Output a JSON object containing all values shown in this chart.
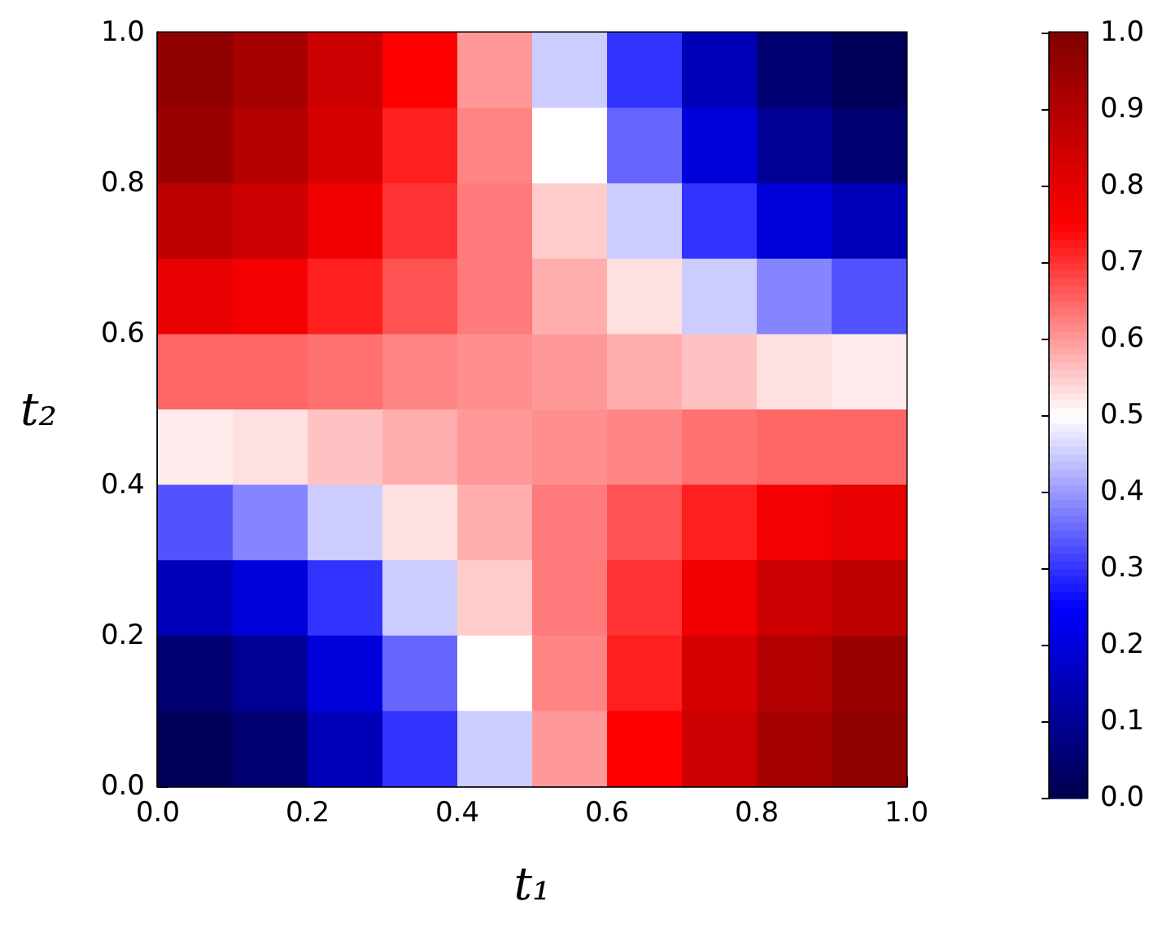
{
  "chart_data": {
    "type": "heatmap",
    "xlabel": "t₁",
    "ylabel": "t₂",
    "x": [
      0.05,
      0.15,
      0.25,
      0.35,
      0.45,
      0.55,
      0.65,
      0.75,
      0.85,
      0.95
    ],
    "xlim": [
      0,
      1
    ],
    "ylim": [
      0,
      1
    ],
    "xticks": [
      {
        "value": 0,
        "label": "0.0"
      },
      {
        "value": 0.2,
        "label": "0.2"
      },
      {
        "value": 0.4,
        "label": "0.4"
      },
      {
        "value": 0.6,
        "label": "0.6"
      },
      {
        "value": 0.8,
        "label": "0.8"
      },
      {
        "value": 1,
        "label": "1.0"
      }
    ],
    "yticks": [
      {
        "value": 0,
        "label": "0.0"
      },
      {
        "value": 0.2,
        "label": "0.2"
      },
      {
        "value": 0.4,
        "label": "0.4"
      },
      {
        "value": 0.6,
        "label": "0.6"
      },
      {
        "value": 0.8,
        "label": "0.8"
      },
      {
        "value": 1,
        "label": "1.0"
      }
    ],
    "clim": [
      0,
      1
    ],
    "cticks": [
      {
        "value": 0,
        "label": "0.0"
      },
      0.1,
      0.2,
      0.3,
      0.4,
      0.5,
      0.6,
      0.7,
      0.8,
      0.9,
      {
        "value": 1,
        "label": "1.0"
      }
    ],
    "cells": [
      [
        0.97,
        0.93,
        0.85,
        0.75,
        0.6,
        0.45,
        0.3,
        0.15,
        0.05,
        0.02
      ],
      [
        0.95,
        0.9,
        0.83,
        0.72,
        0.62,
        0.5,
        0.35,
        0.2,
        0.1,
        0.05
      ],
      [
        0.88,
        0.85,
        0.78,
        0.7,
        0.63,
        0.55,
        0.45,
        0.3,
        0.2,
        0.15
      ],
      [
        0.8,
        0.77,
        0.72,
        0.67,
        0.63,
        0.58,
        0.53,
        0.45,
        0.38,
        0.33
      ],
      [
        0.65,
        0.65,
        0.64,
        0.62,
        0.61,
        0.6,
        0.58,
        0.56,
        0.53,
        0.52
      ],
      [
        0.52,
        0.53,
        0.56,
        0.58,
        0.6,
        0.61,
        0.62,
        0.64,
        0.65,
        0.65
      ],
      [
        0.33,
        0.38,
        0.45,
        0.53,
        0.58,
        0.63,
        0.67,
        0.72,
        0.77,
        0.8
      ],
      [
        0.15,
        0.2,
        0.3,
        0.45,
        0.55,
        0.63,
        0.7,
        0.78,
        0.85,
        0.88
      ],
      [
        0.05,
        0.1,
        0.2,
        0.35,
        0.5,
        0.62,
        0.72,
        0.83,
        0.9,
        0.95
      ],
      [
        0.02,
        0.05,
        0.15,
        0.3,
        0.45,
        0.6,
        0.75,
        0.85,
        0.93,
        0.97
      ]
    ]
  }
}
